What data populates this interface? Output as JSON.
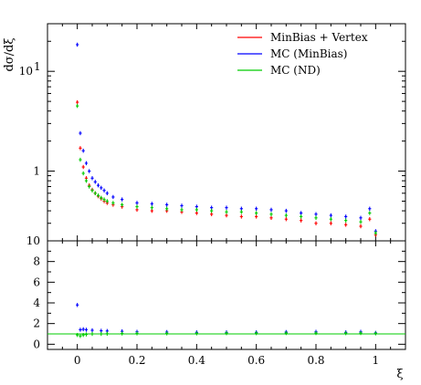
{
  "chart_data": [
    {
      "panel": "main",
      "type": "scatter",
      "title": "",
      "xlabel": "ξ",
      "ylabel": "dσ/dξ",
      "xlim": [
        -0.1,
        1.1
      ],
      "ylim": [
        0.2,
        30
      ],
      "yscale": "log",
      "x_ticks": [
        0,
        0.2,
        0.4,
        0.6,
        0.8,
        1
      ],
      "x_tick_labels": [
        "0",
        "0.2",
        "0.4",
        "0.6",
        "0.8",
        "1"
      ],
      "y_ticks": [
        1,
        10
      ],
      "y_tick_labels": [
        "1",
        "10^1"
      ],
      "legend": {
        "position": "top-right",
        "entries": [
          "MinBias + Vertex",
          "MC (MinBias)",
          "MC (ND)"
        ]
      },
      "series": [
        {
          "name": "MinBias + Vertex",
          "color": "#ff0000",
          "x": [
            0.0,
            0.01,
            0.02,
            0.03,
            0.04,
            0.05,
            0.06,
            0.07,
            0.08,
            0.09,
            0.1,
            0.12,
            0.15,
            0.2,
            0.25,
            0.3,
            0.35,
            0.4,
            0.45,
            0.5,
            0.55,
            0.6,
            0.65,
            0.7,
            0.75,
            0.8,
            0.85,
            0.9,
            0.95,
            0.98,
            1.0
          ],
          "y": [
            4.9,
            1.7,
            1.1,
            0.85,
            0.72,
            0.65,
            0.6,
            0.56,
            0.53,
            0.5,
            0.48,
            0.46,
            0.44,
            0.41,
            0.4,
            0.4,
            0.39,
            0.38,
            0.37,
            0.36,
            0.35,
            0.35,
            0.34,
            0.33,
            0.32,
            0.3,
            0.3,
            0.29,
            0.28,
            0.33,
            0.23
          ]
        },
        {
          "name": "MC (MinBias)",
          "color": "#0000ff",
          "x": [
            0.0,
            0.01,
            0.02,
            0.03,
            0.04,
            0.05,
            0.06,
            0.07,
            0.08,
            0.09,
            0.1,
            0.12,
            0.15,
            0.2,
            0.25,
            0.3,
            0.35,
            0.4,
            0.45,
            0.5,
            0.55,
            0.6,
            0.65,
            0.7,
            0.75,
            0.8,
            0.85,
            0.9,
            0.95,
            0.98,
            1.0
          ],
          "y": [
            18.5,
            2.4,
            1.6,
            1.2,
            1.0,
            0.85,
            0.78,
            0.72,
            0.68,
            0.64,
            0.6,
            0.55,
            0.52,
            0.48,
            0.47,
            0.46,
            0.45,
            0.44,
            0.43,
            0.43,
            0.42,
            0.42,
            0.41,
            0.4,
            0.38,
            0.37,
            0.36,
            0.35,
            0.34,
            0.42,
            0.25
          ]
        },
        {
          "name": "MC (ND)",
          "color": "#00cc00",
          "x": [
            0.0,
            0.01,
            0.02,
            0.03,
            0.04,
            0.05,
            0.06,
            0.07,
            0.08,
            0.09,
            0.1,
            0.12,
            0.15,
            0.2,
            0.25,
            0.3,
            0.35,
            0.4,
            0.45,
            0.5,
            0.55,
            0.6,
            0.65,
            0.7,
            0.75,
            0.8,
            0.85,
            0.9,
            0.95,
            0.98,
            1.0
          ],
          "y": [
            4.5,
            1.3,
            0.95,
            0.8,
            0.7,
            0.64,
            0.6,
            0.57,
            0.54,
            0.52,
            0.5,
            0.48,
            0.46,
            0.44,
            0.43,
            0.42,
            0.41,
            0.41,
            0.4,
            0.39,
            0.39,
            0.38,
            0.37,
            0.36,
            0.35,
            0.34,
            0.33,
            0.32,
            0.31,
            0.38,
            0.24
          ]
        }
      ]
    },
    {
      "panel": "ratio",
      "type": "scatter",
      "xlabel": "ξ",
      "ylabel": "",
      "xlim": [
        -0.1,
        1.1
      ],
      "ylim": [
        -0.5,
        10
      ],
      "x_ticks": [
        0,
        0.2,
        0.4,
        0.6,
        0.8,
        1
      ],
      "x_tick_labels": [
        "0",
        "0.2",
        "0.4",
        "0.6",
        "0.8",
        "1"
      ],
      "y_ticks": [
        0,
        2,
        4,
        6,
        8,
        10
      ],
      "y_tick_labels": [
        "0",
        "2",
        "4",
        "6",
        "8",
        "10"
      ],
      "reference_line": 1,
      "series": [
        {
          "name": "MC (MinBias)",
          "color": "#0000ff",
          "x": [
            0.0,
            0.01,
            0.02,
            0.03,
            0.05,
            0.08,
            0.1,
            0.15,
            0.2,
            0.3,
            0.4,
            0.5,
            0.6,
            0.7,
            0.8,
            0.9,
            0.95,
            1.0
          ],
          "y": [
            3.8,
            1.4,
            1.45,
            1.4,
            1.35,
            1.3,
            1.28,
            1.25,
            1.2,
            1.18,
            1.15,
            1.15,
            1.15,
            1.18,
            1.2,
            1.15,
            1.2,
            1.1
          ]
        },
        {
          "name": "MC (ND)",
          "color": "#00cc00",
          "x": [
            0.0,
            0.01,
            0.02,
            0.03,
            0.05,
            0.08,
            0.1,
            0.15,
            0.2,
            0.3,
            0.4,
            0.5,
            0.6,
            0.7,
            0.8,
            0.9,
            0.95,
            1.0
          ],
          "y": [
            0.9,
            0.8,
            0.9,
            0.95,
            1.0,
            1.0,
            1.02,
            1.04,
            1.05,
            1.05,
            1.05,
            1.07,
            1.07,
            1.08,
            1.08,
            1.07,
            1.08,
            1.05
          ]
        }
      ]
    }
  ]
}
